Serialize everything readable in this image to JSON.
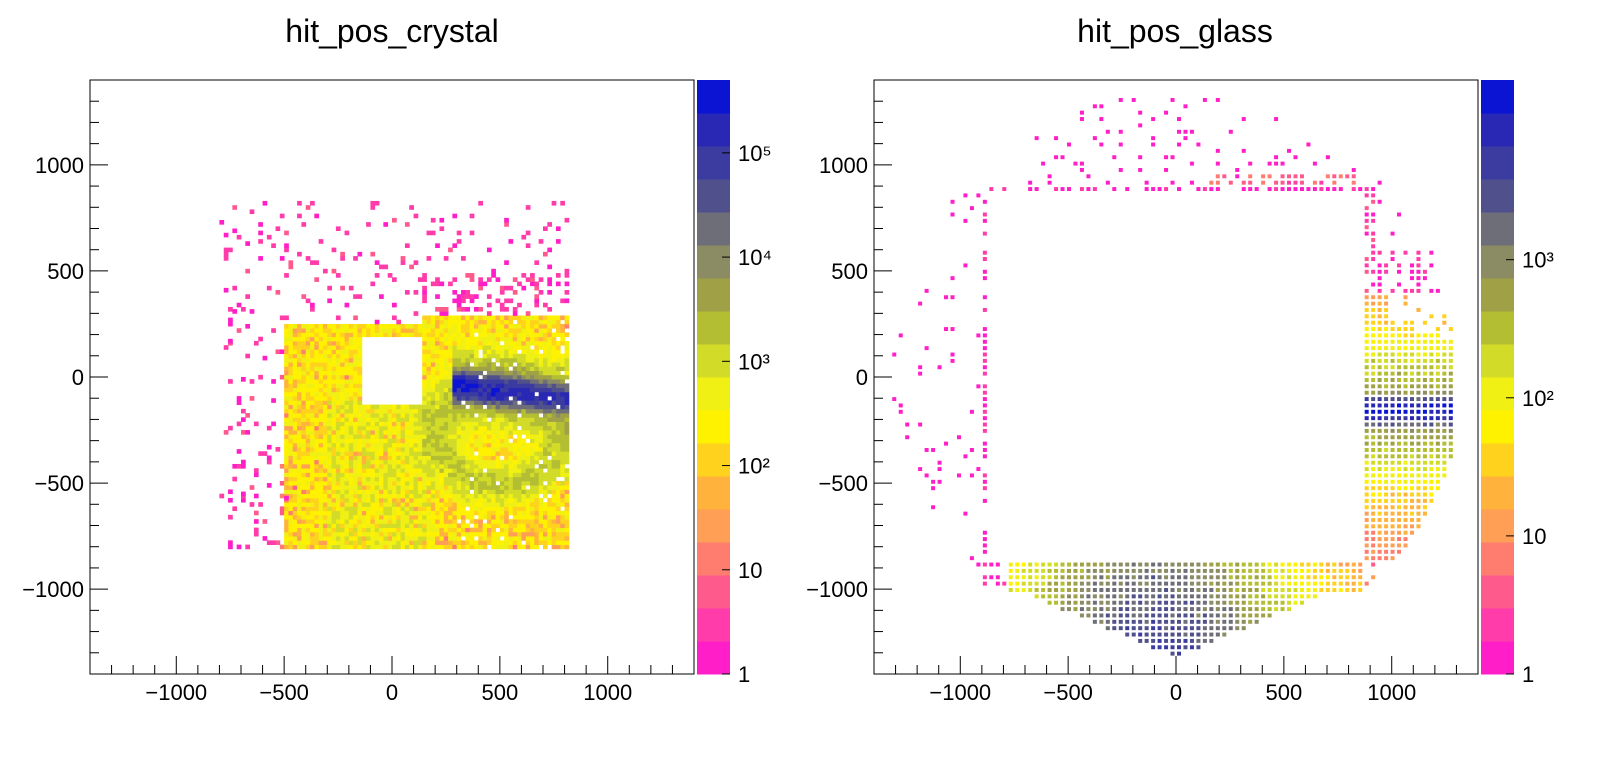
{
  "chart_data": [
    {
      "type": "heatmap",
      "title": "hit_pos_crystal",
      "xlim": [
        -1400,
        1400
      ],
      "ylim": [
        -1400,
        1400
      ],
      "x_ticks": [
        -1000,
        -500,
        0,
        500,
        1000
      ],
      "y_ticks": [
        -1000,
        -500,
        0,
        500,
        1000
      ],
      "x_tick_labels": [
        "−1000",
        "−500",
        "0",
        "500",
        "1000"
      ],
      "y_tick_labels": [
        "−1000",
        "−500",
        "0",
        "500",
        "1000"
      ],
      "z_scale": "log",
      "z_range": [
        1,
        500000
      ],
      "colorbar_tick_labels": [
        "1",
        "10",
        "10²",
        "10³",
        "10⁴",
        "10⁵"
      ],
      "colorbar_tick_values": [
        1,
        10,
        100,
        1000,
        10000,
        100000
      ],
      "occupied_region": {
        "x": [
          -800,
          820
        ],
        "y": [
          -810,
          820
        ]
      },
      "hole": {
        "x": [
          -150,
          140
        ],
        "y": [
          -140,
          200
        ]
      },
      "hotspot": {
        "x": [
          300,
          820
        ],
        "y": [
          -100,
          20
        ],
        "peak_approx": 300000
      },
      "bin_size": 20
    },
    {
      "type": "heatmap",
      "title": "hit_pos_glass",
      "xlim": [
        -1400,
        1400
      ],
      "ylim": [
        -1400,
        1400
      ],
      "x_ticks": [
        -1000,
        -500,
        0,
        500,
        1000
      ],
      "y_ticks": [
        -1000,
        -500,
        0,
        500,
        1000
      ],
      "x_tick_labels": [
        "−1000",
        "−500",
        "0",
        "500",
        "1000"
      ],
      "y_tick_labels": [
        "−1000",
        "−500",
        "0",
        "500",
        "1000"
      ],
      "z_scale": "log",
      "z_range": [
        1,
        20000
      ],
      "colorbar_tick_labels": [
        "1",
        "10",
        "10²",
        "10³"
      ],
      "colorbar_tick_values": [
        1,
        10,
        100,
        1000
      ],
      "inner_gap": {
        "x": [
          -870,
          870
        ],
        "y": [
          -870,
          870
        ]
      },
      "right_band_peak": {
        "x": [
          880,
          1290
        ],
        "y": [
          -210,
          -110
        ],
        "peak_approx": 15000
      },
      "bottom_band_peak": {
        "x": [
          -350,
          150
        ],
        "y": [
          -1300,
          -870
        ],
        "peak_approx": 3000
      },
      "bin_size": 30
    }
  ]
}
